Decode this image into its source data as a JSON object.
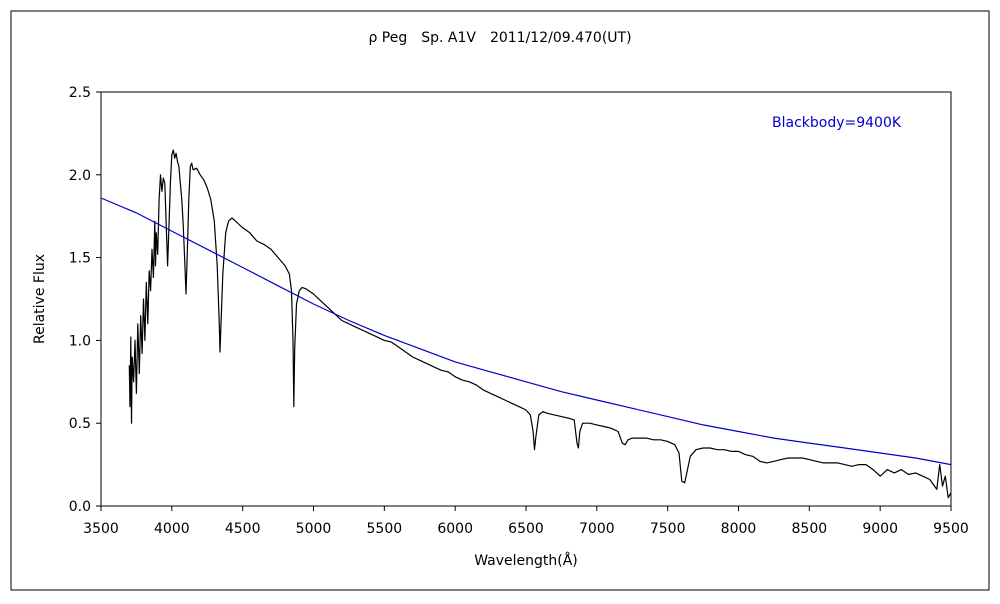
{
  "chart_data": {
    "type": "line",
    "title": "ρ Peg　Sp. A1V　2011/12/09.470(UT)",
    "xlabel": "Wavelength(Å)",
    "ylabel": "Relative Flux",
    "xlim": [
      3500,
      9500
    ],
    "ylim": [
      0.0,
      2.5
    ],
    "x_ticks": [
      "3500",
      "4000",
      "4500",
      "5000",
      "5500",
      "6000",
      "6500",
      "7000",
      "7500",
      "8000",
      "8500",
      "9000",
      "9500"
    ],
    "y_ticks": [
      "0.0",
      "0.5",
      "1.0",
      "1.5",
      "2.0",
      "2.5"
    ],
    "grid": false,
    "legend_placement": "top-right",
    "colors": {
      "spectrum": "#000000",
      "blackbody": "#0000cc",
      "frame": "#000000"
    },
    "series": [
      {
        "id": "spectrum",
        "color": "#000000",
        "points": [
          [
            3700,
            0.85
          ],
          [
            3705,
            0.6
          ],
          [
            3710,
            1.02
          ],
          [
            3715,
            0.5
          ],
          [
            3720,
            0.9
          ],
          [
            3730,
            0.75
          ],
          [
            3740,
            1.0
          ],
          [
            3750,
            0.68
          ],
          [
            3760,
            1.1
          ],
          [
            3770,
            0.8
          ],
          [
            3780,
            1.15
          ],
          [
            3790,
            0.92
          ],
          [
            3800,
            1.25
          ],
          [
            3810,
            1.0
          ],
          [
            3820,
            1.35
          ],
          [
            3830,
            1.1
          ],
          [
            3840,
            1.42
          ],
          [
            3850,
            1.3
          ],
          [
            3860,
            1.55
          ],
          [
            3870,
            1.38
          ],
          [
            3880,
            1.72
          ],
          [
            3885,
            1.45
          ],
          [
            3890,
            1.65
          ],
          [
            3900,
            1.52
          ],
          [
            3910,
            1.85
          ],
          [
            3920,
            2.0
          ],
          [
            3930,
            1.9
          ],
          [
            3940,
            1.98
          ],
          [
            3950,
            1.95
          ],
          [
            3960,
            1.7
          ],
          [
            3970,
            1.45
          ],
          [
            3980,
            1.7
          ],
          [
            3990,
            1.95
          ],
          [
            4000,
            2.12
          ],
          [
            4010,
            2.15
          ],
          [
            4020,
            2.1
          ],
          [
            4030,
            2.13
          ],
          [
            4040,
            2.08
          ],
          [
            4050,
            2.05
          ],
          [
            4060,
            1.95
          ],
          [
            4070,
            1.85
          ],
          [
            4080,
            1.7
          ],
          [
            4090,
            1.5
          ],
          [
            4100,
            1.28
          ],
          [
            4110,
            1.55
          ],
          [
            4120,
            1.85
          ],
          [
            4130,
            2.05
          ],
          [
            4140,
            2.07
          ],
          [
            4150,
            2.03
          ],
          [
            4175,
            2.04
          ],
          [
            4200,
            2.0
          ],
          [
            4225,
            1.97
          ],
          [
            4250,
            1.92
          ],
          [
            4275,
            1.85
          ],
          [
            4300,
            1.72
          ],
          [
            4320,
            1.45
          ],
          [
            4335,
            1.1
          ],
          [
            4340,
            0.93
          ],
          [
            4345,
            1.05
          ],
          [
            4360,
            1.4
          ],
          [
            4380,
            1.65
          ],
          [
            4400,
            1.72
          ],
          [
            4425,
            1.74
          ],
          [
            4450,
            1.72
          ],
          [
            4475,
            1.7
          ],
          [
            4500,
            1.68
          ],
          [
            4550,
            1.65
          ],
          [
            4600,
            1.6
          ],
          [
            4650,
            1.58
          ],
          [
            4700,
            1.55
          ],
          [
            4750,
            1.5
          ],
          [
            4800,
            1.45
          ],
          [
            4830,
            1.4
          ],
          [
            4845,
            1.3
          ],
          [
            4855,
            1.0
          ],
          [
            4861,
            0.6
          ],
          [
            4867,
            0.95
          ],
          [
            4880,
            1.22
          ],
          [
            4900,
            1.3
          ],
          [
            4920,
            1.32
          ],
          [
            4950,
            1.31
          ],
          [
            5000,
            1.28
          ],
          [
            5050,
            1.24
          ],
          [
            5100,
            1.2
          ],
          [
            5150,
            1.16
          ],
          [
            5200,
            1.12
          ],
          [
            5250,
            1.1
          ],
          [
            5300,
            1.08
          ],
          [
            5350,
            1.06
          ],
          [
            5400,
            1.04
          ],
          [
            5450,
            1.02
          ],
          [
            5500,
            1.0
          ],
          [
            5550,
            0.99
          ],
          [
            5600,
            0.96
          ],
          [
            5650,
            0.93
          ],
          [
            5700,
            0.9
          ],
          [
            5750,
            0.88
          ],
          [
            5800,
            0.86
          ],
          [
            5850,
            0.84
          ],
          [
            5900,
            0.82
          ],
          [
            5950,
            0.81
          ],
          [
            6000,
            0.78
          ],
          [
            6050,
            0.76
          ],
          [
            6100,
            0.75
          ],
          [
            6150,
            0.73
          ],
          [
            6200,
            0.7
          ],
          [
            6250,
            0.68
          ],
          [
            6300,
            0.66
          ],
          [
            6350,
            0.64
          ],
          [
            6400,
            0.62
          ],
          [
            6450,
            0.6
          ],
          [
            6500,
            0.58
          ],
          [
            6530,
            0.55
          ],
          [
            6550,
            0.45
          ],
          [
            6560,
            0.34
          ],
          [
            6570,
            0.42
          ],
          [
            6590,
            0.55
          ],
          [
            6620,
            0.57
          ],
          [
            6650,
            0.56
          ],
          [
            6700,
            0.55
          ],
          [
            6750,
            0.54
          ],
          [
            6800,
            0.53
          ],
          [
            6840,
            0.52
          ],
          [
            6860,
            0.38
          ],
          [
            6870,
            0.35
          ],
          [
            6880,
            0.45
          ],
          [
            6900,
            0.5
          ],
          [
            6950,
            0.5
          ],
          [
            7000,
            0.49
          ],
          [
            7050,
            0.48
          ],
          [
            7100,
            0.47
          ],
          [
            7150,
            0.45
          ],
          [
            7180,
            0.38
          ],
          [
            7200,
            0.37
          ],
          [
            7220,
            0.4
          ],
          [
            7250,
            0.41
          ],
          [
            7300,
            0.41
          ],
          [
            7350,
            0.41
          ],
          [
            7400,
            0.4
          ],
          [
            7450,
            0.4
          ],
          [
            7500,
            0.39
          ],
          [
            7550,
            0.37
          ],
          [
            7580,
            0.32
          ],
          [
            7600,
            0.15
          ],
          [
            7620,
            0.14
          ],
          [
            7640,
            0.22
          ],
          [
            7660,
            0.3
          ],
          [
            7700,
            0.34
          ],
          [
            7750,
            0.35
          ],
          [
            7800,
            0.35
          ],
          [
            7850,
            0.34
          ],
          [
            7900,
            0.34
          ],
          [
            7950,
            0.33
          ],
          [
            8000,
            0.33
          ],
          [
            8050,
            0.31
          ],
          [
            8100,
            0.3
          ],
          [
            8150,
            0.27
          ],
          [
            8200,
            0.26
          ],
          [
            8250,
            0.27
          ],
          [
            8300,
            0.28
          ],
          [
            8350,
            0.29
          ],
          [
            8400,
            0.29
          ],
          [
            8450,
            0.29
          ],
          [
            8500,
            0.28
          ],
          [
            8550,
            0.27
          ],
          [
            8600,
            0.26
          ],
          [
            8650,
            0.26
          ],
          [
            8700,
            0.26
          ],
          [
            8750,
            0.25
          ],
          [
            8800,
            0.24
          ],
          [
            8850,
            0.25
          ],
          [
            8900,
            0.25
          ],
          [
            8950,
            0.22
          ],
          [
            9000,
            0.18
          ],
          [
            9050,
            0.22
          ],
          [
            9100,
            0.2
          ],
          [
            9150,
            0.22
          ],
          [
            9200,
            0.19
          ],
          [
            9250,
            0.2
          ],
          [
            9300,
            0.18
          ],
          [
            9350,
            0.16
          ],
          [
            9400,
            0.1
          ],
          [
            9420,
            0.25
          ],
          [
            9440,
            0.12
          ],
          [
            9460,
            0.18
          ],
          [
            9480,
            0.05
          ],
          [
            9500,
            0.08
          ]
        ]
      },
      {
        "id": "blackbody",
        "name": "Blackbody=9400K",
        "color": "#0000cc",
        "points": [
          [
            3500,
            1.86
          ],
          [
            3750,
            1.77
          ],
          [
            4000,
            1.66
          ],
          [
            4250,
            1.55
          ],
          [
            4500,
            1.44
          ],
          [
            4750,
            1.33
          ],
          [
            5000,
            1.22
          ],
          [
            5250,
            1.12
          ],
          [
            5500,
            1.03
          ],
          [
            5750,
            0.95
          ],
          [
            6000,
            0.87
          ],
          [
            6250,
            0.81
          ],
          [
            6500,
            0.75
          ],
          [
            6750,
            0.69
          ],
          [
            7000,
            0.64
          ],
          [
            7250,
            0.59
          ],
          [
            7500,
            0.54
          ],
          [
            7750,
            0.49
          ],
          [
            8000,
            0.45
          ],
          [
            8250,
            0.41
          ],
          [
            8500,
            0.38
          ],
          [
            8750,
            0.35
          ],
          [
            9000,
            0.32
          ],
          [
            9250,
            0.29
          ],
          [
            9500,
            0.25
          ]
        ]
      }
    ]
  }
}
